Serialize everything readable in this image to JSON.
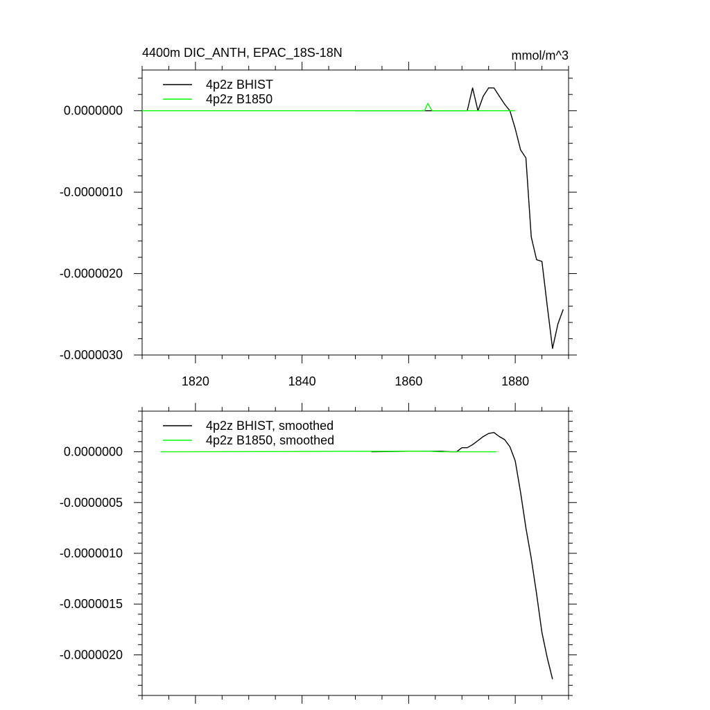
{
  "figure": {
    "title_left": "4400m DIC_ANTH, EPAC_18S-18N",
    "title_right": "mmol/m^3"
  },
  "colors": {
    "bhist": "#000000",
    "b1850": "#00ff00",
    "axis": "#000000"
  },
  "chart_data": [
    {
      "type": "line",
      "title": "4400m DIC_ANTH, EPAC_18S-18N",
      "units": "mmol/m^3",
      "xlim": [
        1810,
        1890
      ],
      "ylim": [
        -3e-06,
        5e-07
      ],
      "xticks": [
        1820,
        1840,
        1860,
        1880
      ],
      "xtick_labels": [
        "1820",
        "1840",
        "1860",
        "1880"
      ],
      "yticks": [
        0,
        -1e-06,
        -2e-06,
        -3e-06
      ],
      "ytick_labels": [
        "0.0000000",
        "-0.0000010",
        "-0.0000020",
        "-0.0000030"
      ],
      "legend": [
        "4p2z BHIST",
        "4p2z B1850"
      ],
      "legend_position": "top-left",
      "series": [
        {
          "name": "4p2z BHIST",
          "color": "#000000",
          "x": [
            1850,
            1860,
            1871,
            1872,
            1873,
            1874,
            1875,
            1876,
            1877,
            1878,
            1879,
            1880,
            1881,
            1882,
            1883,
            1884,
            1885,
            1886,
            1887,
            1888,
            1889
          ],
          "y": [
            0,
            0,
            0,
            2.8e-07,
            0,
            1.8e-07,
            2.8e-07,
            2.8e-07,
            1.8e-07,
            8e-08,
            0,
            -2.2e-07,
            -4.8e-07,
            -5.8e-07,
            -1.55e-06,
            -1.83e-06,
            -1.85e-06,
            -2.4e-06,
            -2.92e-06,
            -2.62e-06,
            -2.44e-06
          ]
        },
        {
          "name": "4p2z B1850",
          "color": "#00ff00",
          "x": [
            1810,
            1863,
            1863.6,
            1864.4,
            1865,
            1880
          ],
          "y": [
            0,
            0,
            9e-08,
            0,
            0,
            0
          ]
        }
      ]
    },
    {
      "type": "line",
      "xlim": [
        1810,
        1890
      ],
      "ylim": [
        -2.4e-06,
        4e-07
      ],
      "xticks": [
        1820,
        1840,
        1860,
        1880
      ],
      "yticks": [
        0,
        -5e-07,
        -1e-06,
        -1.5e-06,
        -2e-06
      ],
      "ytick_labels": [
        "0.0000000",
        "-0.0000005",
        "-0.0000010",
        "-0.0000015",
        "-0.0000020"
      ],
      "legend": [
        "4p2z BHIST, smoothed",
        "4p2z B1850, smoothed"
      ],
      "legend_position": "top-left",
      "series": [
        {
          "name": "4p2z BHIST, smoothed",
          "color": "#000000",
          "x": [
            1853,
            1860,
            1866,
            1868,
            1869,
            1870,
            1871,
            1872,
            1873,
            1874,
            1875,
            1876,
            1877,
            1878,
            1879,
            1880,
            1881,
            1882,
            1883,
            1884,
            1885,
            1886,
            1887
          ],
          "y": [
            0,
            5e-09,
            5e-09,
            0,
            0,
            4e-08,
            4e-08,
            7e-08,
            1.1e-07,
            1.5e-07,
            1.8e-07,
            1.9e-07,
            1.5e-07,
            1.2e-07,
            5e-08,
            -9e-08,
            -4e-07,
            -7.5e-07,
            -1.05e-06,
            -1.4e-06,
            -1.78e-06,
            -2.03e-06,
            -2.24e-06
          ]
        },
        {
          "name": "4p2z B1850, smoothed",
          "color": "#00ff00",
          "x": [
            1813.5,
            1860,
            1864,
            1866,
            1876.5
          ],
          "y": [
            0,
            5e-09,
            5e-09,
            0,
            0
          ]
        }
      ]
    }
  ]
}
